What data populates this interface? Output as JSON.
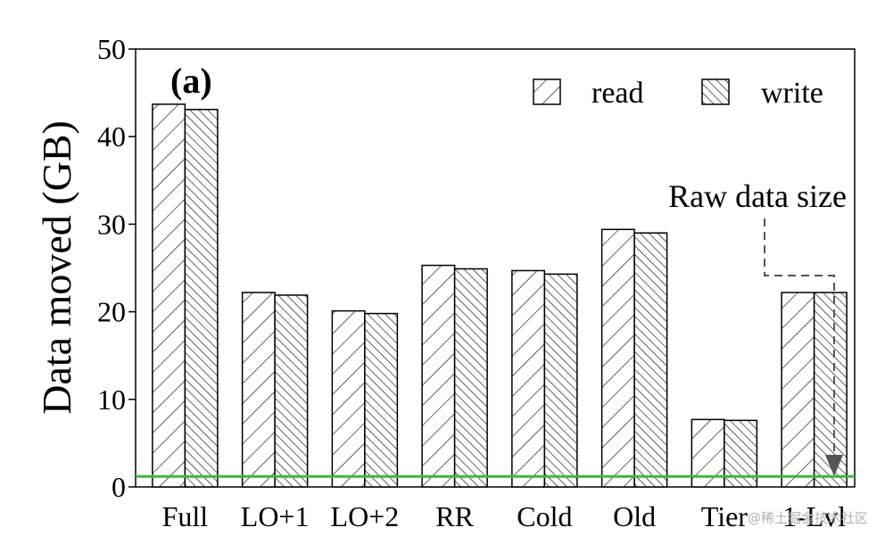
{
  "chart_data": {
    "type": "bar",
    "panel_label": "(a)",
    "categories": [
      "Full",
      "LO+1",
      "LO+2",
      "RR",
      "Cold",
      "Old",
      "Tier",
      "1-Lvl"
    ],
    "series": [
      {
        "name": "read",
        "values": [
          43.7,
          22.2,
          20.1,
          25.3,
          24.7,
          29.4,
          7.7,
          22.2
        ]
      },
      {
        "name": "write",
        "values": [
          43.1,
          21.9,
          19.8,
          24.9,
          24.3,
          29.0,
          7.6,
          22.2
        ]
      }
    ],
    "xlabel": "",
    "ylabel": "Data moved (GB)",
    "ylim": [
      0,
      50
    ],
    "yticks": [
      0,
      10,
      20,
      30,
      40,
      50
    ],
    "grid": false,
    "legend_position": "top-right",
    "raw_data_size": {
      "value": 1.2,
      "label": "Raw data size",
      "color": "#3cb93c"
    }
  },
  "watermark": "@稀土掘金技术社区"
}
